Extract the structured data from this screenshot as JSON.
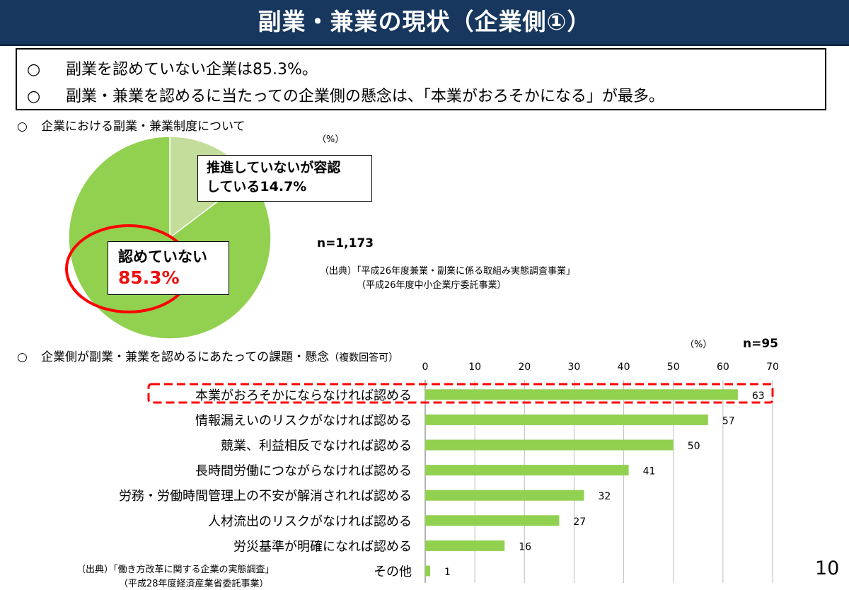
{
  "title": "副業・兼業の現状（企業側①）",
  "summary": {
    "marker": "○",
    "lines": [
      "副業を認めていない企業は85.3%。",
      "副業・兼業を認めるに当たっての企業側の懸念は、「本業がおろそかになる」が最多。"
    ]
  },
  "pie_section": {
    "marker": "○",
    "heading": "企業における副業・兼業制度について",
    "unit": "（%）",
    "n": "n=1,173",
    "label_minor_line1": "推進していないが容認",
    "label_minor_line2": "している14.7%",
    "label_major_line1": "認めていない",
    "label_major_line2": "85.3%",
    "source_line1": "（出典）「平成26年度兼業・副業に係る取組み実態調査事業」",
    "source_line2": "（平成26年度中小企業庁委託事業）"
  },
  "bar_section": {
    "marker": "○",
    "heading": "企業側が副業・兼業を認めるにあたっての課題・懸念",
    "heading_note": "（複数回答可）",
    "unit": "（%）",
    "n": "n=95",
    "source_line1": "（出典）「働き方改革に関する企業の実態調査」",
    "source_line2": "（平成28年度経済産業省委託事業）"
  },
  "page_number": "10",
  "colors": {
    "title_bg": "#17375e",
    "pie_major": "#92d050",
    "pie_minor": "#c4dd9a",
    "bar": "#92d050",
    "highlight": "#ff0000"
  },
  "chart_data": [
    {
      "type": "pie",
      "categories": [
        "推進していないが容認している",
        "認めていない"
      ],
      "values": [
        14.7,
        85.3
      ]
    },
    {
      "type": "bar",
      "orientation": "horizontal",
      "categories": [
        "本業がおろそかにならなければ認める",
        "情報漏えいのリスクがなければ認める",
        "競業、利益相反でなければ認める",
        "長時間労働につながらなければ認める",
        "労務・労働時間管理上の不安が解消されれば認める",
        "人材流出のリスクがなければ認める",
        "労災基準が明確になれば認める",
        "その他"
      ],
      "values": [
        63,
        57,
        50,
        41,
        32,
        27,
        16,
        1
      ],
      "xlim": [
        0,
        70
      ],
      "xticks": [
        0,
        10,
        20,
        30,
        40,
        50,
        60,
        70
      ],
      "grid": true,
      "highlighted_category": "本業がおろそかにならなければ認める"
    }
  ]
}
